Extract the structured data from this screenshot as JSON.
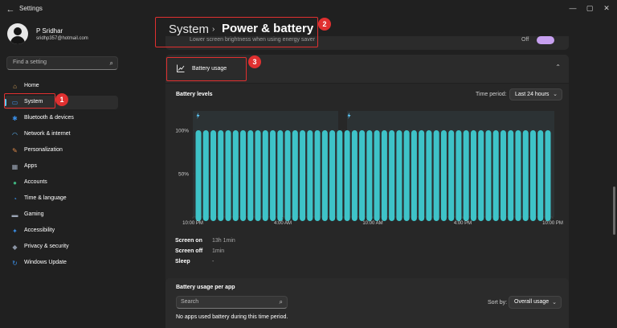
{
  "window": {
    "title": "Settings",
    "back_glyph": "←",
    "minimize_glyph": "—",
    "maximize_glyph": "▢",
    "close_glyph": "✕"
  },
  "user": {
    "name": "P Sridhar",
    "email": "sridhp357@hotmail.com"
  },
  "search": {
    "placeholder": "Find a setting",
    "icon": "search-icon"
  },
  "sidebar": {
    "items": [
      {
        "label": "Home",
        "icon": "home-icon",
        "icon_color": "#d8a35a",
        "glyph": "⌂"
      },
      {
        "label": "System",
        "icon": "monitor-icon",
        "icon_color": "#3a8ee6",
        "glyph": "▭",
        "active": true
      },
      {
        "label": "Bluetooth & devices",
        "icon": "bluetooth-icon",
        "icon_color": "#3a8ee6",
        "glyph": "✱"
      },
      {
        "label": "Network & internet",
        "icon": "wifi-icon",
        "icon_color": "#5ab0f0",
        "glyph": "◠"
      },
      {
        "label": "Personalization",
        "icon": "brush-icon",
        "icon_color": "#e08a4a",
        "glyph": "✎"
      },
      {
        "label": "Apps",
        "icon": "apps-icon",
        "icon_color": "#9aa4b4",
        "glyph": "▦"
      },
      {
        "label": "Accounts",
        "icon": "person-icon",
        "icon_color": "#3fb37f",
        "glyph": "●"
      },
      {
        "label": "Time & language",
        "icon": "globe-clock-icon",
        "icon_color": "#3a8ee6",
        "glyph": "◔"
      },
      {
        "label": "Gaming",
        "icon": "gamepad-icon",
        "icon_color": "#9aa4b4",
        "glyph": "▬"
      },
      {
        "label": "Accessibility",
        "icon": "accessibility-icon",
        "icon_color": "#3a8ee6",
        "glyph": "✦"
      },
      {
        "label": "Privacy & security",
        "icon": "shield-icon",
        "icon_color": "#8a94a4",
        "glyph": "◆"
      },
      {
        "label": "Windows Update",
        "icon": "update-icon",
        "icon_color": "#3a8ee6",
        "glyph": "↻"
      }
    ]
  },
  "header": {
    "breadcrumb_parent": "System",
    "separator": "›",
    "breadcrumb_current": "Power & battery"
  },
  "cut_card": {
    "text": "Lower screen brightness when using energy saver",
    "toggle_label": "Off"
  },
  "battery_usage": {
    "label": "Battery usage",
    "icon": "line-chart-icon",
    "chevron": "⌃",
    "levels_title": "Battery levels",
    "time_period_label": "Time period:",
    "time_period_value": "Last 24 hours",
    "dropdown_chevron": "⌄"
  },
  "chart_data": {
    "type": "bar",
    "title": "Battery levels",
    "y_tick_labels": [
      "100%",
      "50%"
    ],
    "x_tick_labels": [
      "10:00 PM",
      "4:00 AM",
      "10:00 AM",
      "4:00 PM",
      "10:00 PM"
    ],
    "ylim": [
      0,
      100
    ],
    "bar_color": "#3ec3c8",
    "charging_markers": 2,
    "values": [
      100,
      100,
      100,
      100,
      100,
      100,
      100,
      100,
      100,
      100,
      100,
      100,
      100,
      100,
      100,
      100,
      100,
      100,
      100,
      100,
      100,
      100,
      100,
      100,
      100,
      100,
      100,
      100,
      100,
      100,
      100,
      100,
      100,
      100,
      100,
      100,
      100,
      100,
      100,
      100,
      100,
      100,
      100,
      100,
      100,
      100,
      100,
      100
    ]
  },
  "stats": [
    {
      "label": "Screen on",
      "value": "13h 1min"
    },
    {
      "label": "Screen off",
      "value": "1min"
    },
    {
      "label": "Sleep",
      "value": "-"
    }
  ],
  "per_app": {
    "title": "Battery usage per app",
    "search_placeholder": "Search",
    "sort_label": "Sort by:",
    "sort_value": "Overall usage",
    "empty_text": "No apps used battery during this time period."
  },
  "annotations": [
    "1",
    "2",
    "3"
  ]
}
